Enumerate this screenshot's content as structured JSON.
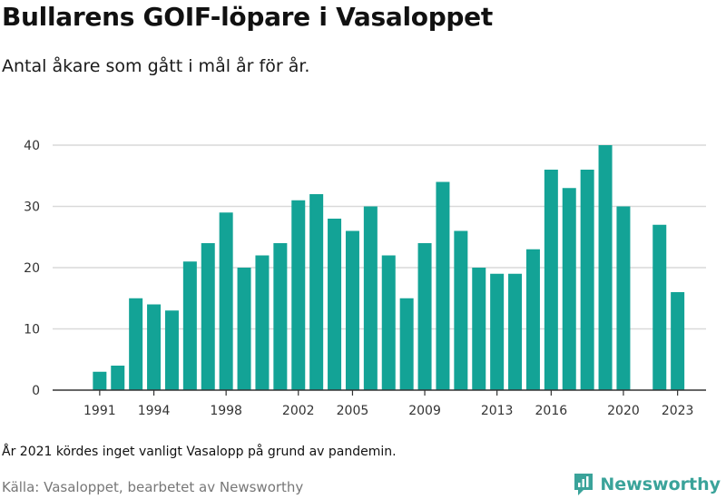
{
  "header": {
    "title": "Bullarens GOIF-löpare i Vasaloppet",
    "subtitle": "Antal åkare som gått i mål år för år."
  },
  "footer": {
    "note": "År 2021 kördes inget vanligt Vasalopp på grund av pandemin.",
    "source": "Källa: Vasaloppet, bearbetet av Newsworthy",
    "brand": "Newsworthy"
  },
  "colors": {
    "bar": "#13a396",
    "grid": "#d9d9d9",
    "axis": "#333333",
    "brand": "#3aa39a"
  },
  "chart_data": {
    "type": "bar",
    "title": "Bullarens GOIF-löpare i Vasaloppet",
    "subtitle": "Antal åkare som gått i mål år för år.",
    "xlabel": "",
    "ylabel": "",
    "ylim": [
      0,
      40
    ],
    "yticks": [
      0,
      10,
      20,
      30,
      40
    ],
    "grid": true,
    "categories": [
      1990,
      1991,
      1992,
      1993,
      1994,
      1995,
      1996,
      1997,
      1998,
      1999,
      2000,
      2001,
      2002,
      2003,
      2004,
      2005,
      2006,
      2007,
      2008,
      2009,
      2010,
      2011,
      2012,
      2013,
      2014,
      2015,
      2016,
      2017,
      2018,
      2019,
      2020,
      2021,
      2022,
      2023
    ],
    "values": [
      0,
      3,
      4,
      15,
      14,
      13,
      21,
      24,
      29,
      20,
      22,
      24,
      31,
      32,
      28,
      26,
      30,
      22,
      15,
      24,
      34,
      26,
      20,
      19,
      19,
      23,
      36,
      33,
      36,
      40,
      30,
      0,
      27,
      16
    ],
    "xtick_labels": [
      "1991",
      "1994",
      "1998",
      "2002",
      "2005",
      "2009",
      "2013",
      "2016",
      "2020",
      "2023"
    ]
  }
}
